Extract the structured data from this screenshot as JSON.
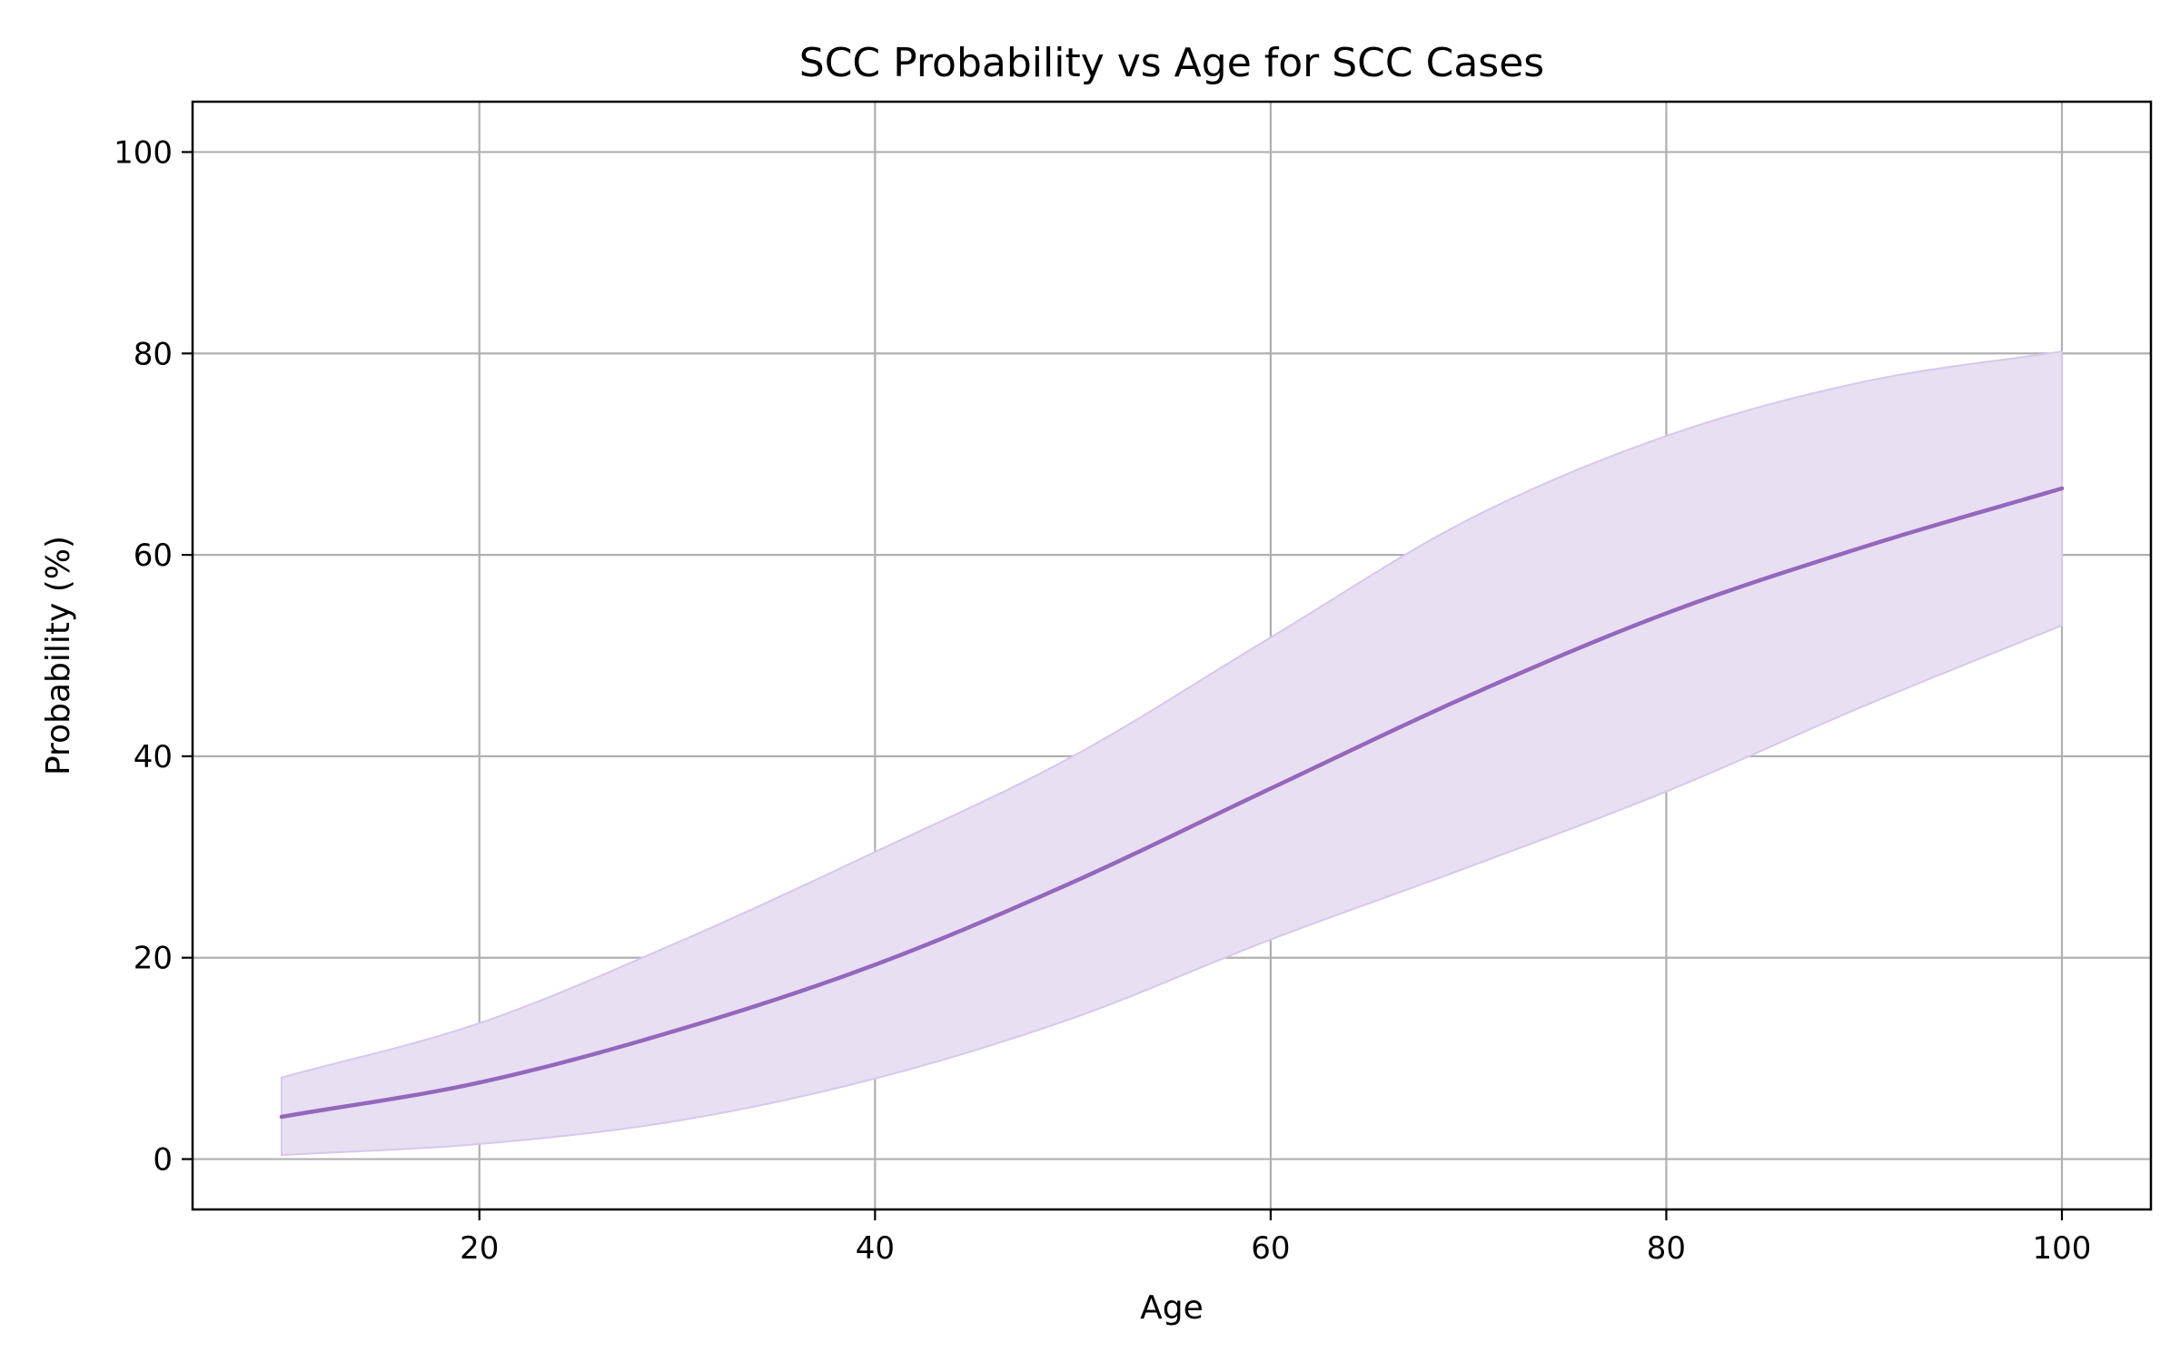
{
  "chart_data": {
    "type": "line",
    "title": "SCC Probability vs Age for SCC Cases",
    "xlabel": "Age",
    "ylabel": "Probability (%)",
    "xlim": [
      5.5,
      104.5
    ],
    "ylim": [
      -5,
      105
    ],
    "x_ticks": [
      20,
      40,
      60,
      80,
      100
    ],
    "y_ticks": [
      0,
      20,
      40,
      60,
      80,
      100
    ],
    "grid": true,
    "legend": "none",
    "colors": {
      "line": "#9467bd",
      "band_fill": "#e8dff2",
      "band_edge": "#d7c8eb",
      "grid": "#b0b0b0",
      "axes": "#000000"
    },
    "series": [
      {
        "x": [
          10,
          20,
          30,
          40,
          50,
          60,
          70,
          80,
          90,
          100
        ],
        "values": [
          4.2,
          7.6,
          12.8,
          19.3,
          27.5,
          36.8,
          46.0,
          54.2,
          60.8,
          66.6
        ]
      }
    ],
    "band": {
      "x": [
        10,
        20,
        30,
        40,
        50,
        60,
        70,
        80,
        90,
        100
      ],
      "lower": [
        0.4,
        1.5,
        3.8,
        8.0,
        14.0,
        21.8,
        29.0,
        36.5,
        45.0,
        53.0
      ],
      "upper": [
        8.1,
        13.5,
        21.5,
        30.5,
        40.0,
        51.8,
        63.5,
        71.8,
        77.2,
        80.2
      ]
    }
  }
}
